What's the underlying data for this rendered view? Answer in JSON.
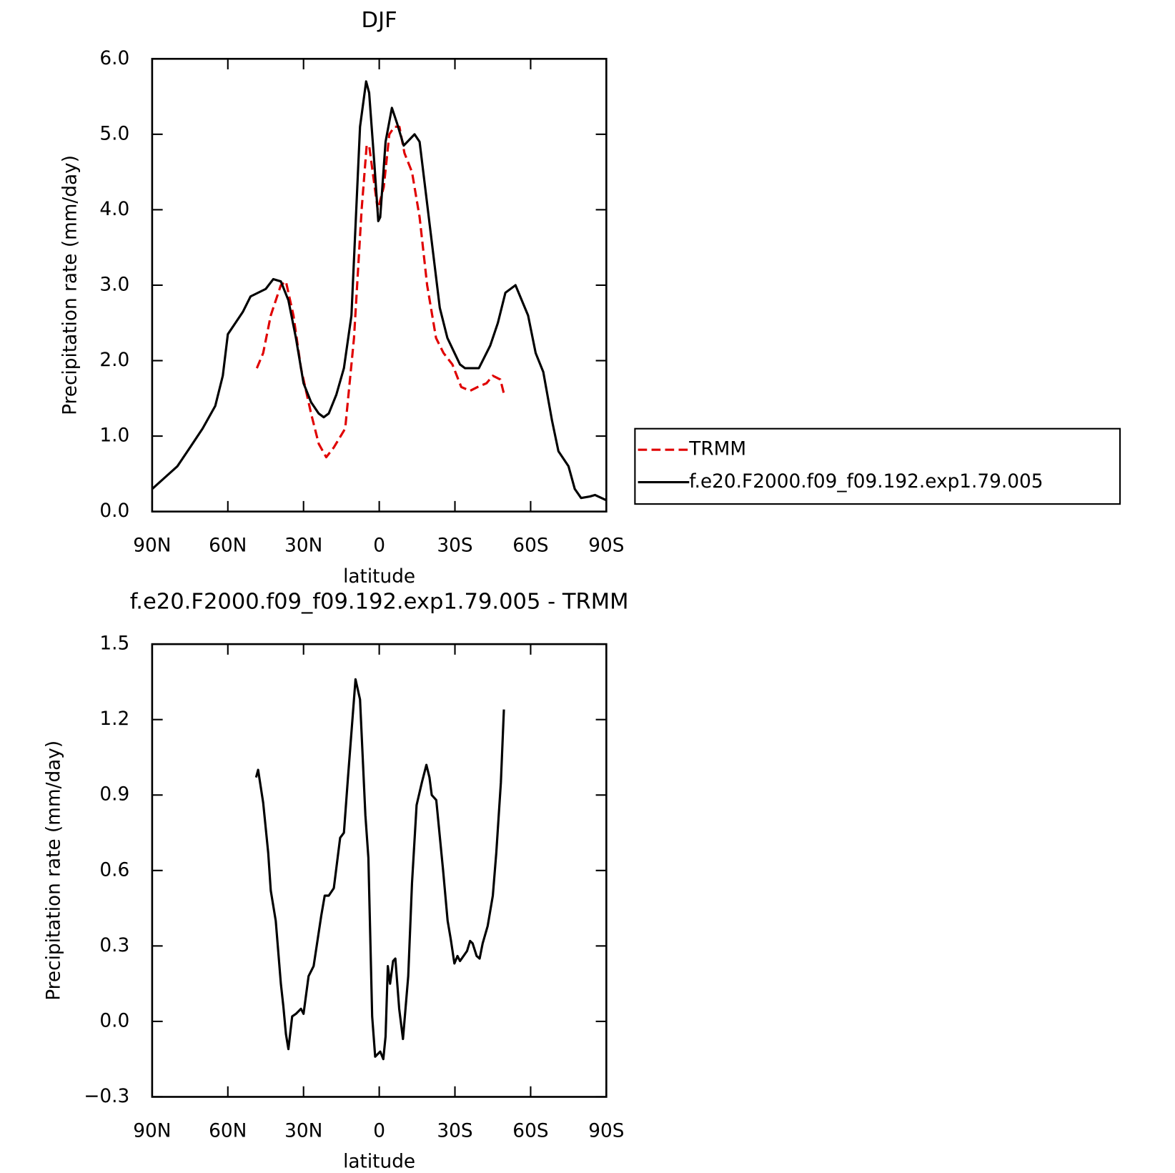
{
  "chart_data": [
    {
      "type": "line",
      "title": "DJF",
      "xlabel": "latitude",
      "ylabel": "Precipitation rate (mm/day)",
      "xlim": [
        90,
        -90
      ],
      "xticks": [
        {
          "value": 90,
          "label": "90N"
        },
        {
          "value": 60,
          "label": "60N"
        },
        {
          "value": 30,
          "label": "30N"
        },
        0,
        {
          "value": -30,
          "label": "30S"
        },
        {
          "value": -60,
          "label": "60S"
        },
        {
          "value": -90,
          "label": "90S"
        }
      ],
      "ylim": [
        0,
        6
      ],
      "yticks": [
        {
          "value": 0,
          "label": "0.0"
        },
        {
          "value": 1,
          "label": "1.0"
        },
        {
          "value": 2,
          "label": "2.0"
        },
        {
          "value": 3,
          "label": "3.0"
        },
        {
          "value": 4,
          "label": "4.0"
        },
        {
          "value": 5,
          "label": "5.0"
        },
        {
          "value": 6,
          "label": "6.0"
        }
      ],
      "legend": "right",
      "series": [
        {
          "name": "TRMM",
          "color": "#e00000",
          "dash": "dashed",
          "x": [
            48.5,
            46,
            43,
            39,
            37,
            34,
            31,
            27,
            24,
            21,
            18,
            13.5,
            10,
            7,
            5,
            4,
            0.6,
            -1.8,
            -4,
            -6,
            -8,
            -10,
            -13,
            -16,
            -19,
            -22.5,
            -25.5,
            -29,
            -32.5,
            -36,
            -39,
            -42.5,
            -45,
            -48,
            -49.5
          ],
          "values": [
            1.9,
            2.1,
            2.6,
            3.0,
            3.05,
            2.6,
            1.9,
            1.3,
            0.9,
            0.72,
            0.85,
            1.1,
            2.3,
            4.0,
            4.85,
            4.85,
            4.0,
            4.3,
            5.0,
            5.1,
            5.1,
            4.75,
            4.5,
            3.9,
            3.0,
            2.3,
            2.1,
            1.95,
            1.65,
            1.6,
            1.65,
            1.7,
            1.8,
            1.75,
            1.55
          ]
        },
        {
          "name": "f.e20.F2000.f09_f09.192.exp1.79.005",
          "color": "#000000",
          "dash": "solid",
          "x": [
            90,
            85,
            80,
            75,
            70,
            65,
            62,
            60,
            57,
            54,
            51,
            48,
            45,
            42,
            39,
            36,
            33,
            30,
            27,
            24,
            22,
            20,
            17,
            14,
            11,
            7.6,
            5.2,
            4,
            1.9,
            0.4,
            -0.4,
            -2.5,
            -5,
            -7,
            -9.7,
            -14,
            -16,
            -20,
            -24,
            -27,
            -32,
            -34,
            -36,
            -39.5,
            -44,
            -47,
            -50,
            -54,
            -59,
            -62,
            -65,
            -68.5,
            -71,
            -75,
            -77.5,
            -80,
            -83.5,
            -85.5,
            -90
          ],
          "values": [
            0.3,
            0.45,
            0.6,
            0.85,
            1.1,
            1.4,
            1.8,
            2.35,
            2.5,
            2.65,
            2.85,
            2.9,
            2.95,
            3.08,
            3.05,
            2.8,
            2.3,
            1.7,
            1.45,
            1.3,
            1.25,
            1.3,
            1.55,
            1.9,
            2.6,
            5.1,
            5.7,
            5.55,
            4.6,
            3.85,
            3.9,
            4.9,
            5.35,
            5.15,
            4.85,
            5.0,
            4.9,
            3.8,
            2.7,
            2.3,
            1.95,
            1.9,
            1.9,
            1.9,
            2.2,
            2.5,
            2.9,
            3.0,
            2.6,
            2.1,
            1.85,
            1.2,
            0.8,
            0.6,
            0.3,
            0.18,
            0.2,
            0.22,
            0.15
          ]
        }
      ]
    },
    {
      "type": "line",
      "title": "f.e20.F2000.f09_f09.192.exp1.79.005 - TRMM",
      "xlabel": "latitude",
      "ylabel": "Precipitation rate (mm/day)",
      "xlim": [
        90,
        -90
      ],
      "xticks": [
        {
          "value": 90,
          "label": "90N"
        },
        {
          "value": 60,
          "label": "60N"
        },
        {
          "value": 30,
          "label": "30N"
        },
        0,
        {
          "value": -30,
          "label": "30S"
        },
        {
          "value": -60,
          "label": "60S"
        },
        {
          "value": -90,
          "label": "90S"
        }
      ],
      "ylim": [
        -0.3,
        1.5
      ],
      "yticks": [
        {
          "value": -0.3,
          "label": "−0.3"
        },
        {
          "value": 0,
          "label": "0.0"
        },
        0.3,
        0.6,
        0.9,
        1.2,
        1.5
      ],
      "series": [
        {
          "color": "#000000",
          "dash": "solid",
          "x": [
            48.8,
            48,
            46,
            44,
            43,
            41,
            39,
            38,
            37,
            36,
            34.5,
            33,
            31,
            30,
            28,
            26,
            23,
            21.6,
            20,
            18,
            15.5,
            14,
            12.4,
            9.4,
            7.6,
            5.5,
            4.3,
            2.8,
            1.6,
            -0.4,
            -1.6,
            -2.5,
            -3.4,
            -4.3,
            -5.5,
            -6.4,
            -7.9,
            -9.4,
            -11.5,
            -13,
            -14.8,
            -16.9,
            -18.7,
            -19.9,
            -20.8,
            -22.6,
            -25.3,
            -27.1,
            -28.3,
            -29.8,
            -31,
            -32,
            -34.8,
            -36,
            -37,
            -38.6,
            -39.8,
            -41,
            -43,
            -45,
            -46.4,
            -48.2,
            -49.4
          ],
          "values": [
            0.97,
            1.0,
            0.87,
            0.67,
            0.52,
            0.4,
            0.15,
            0.06,
            -0.05,
            -0.11,
            0.02,
            0.03,
            0.05,
            0.03,
            0.18,
            0.22,
            0.42,
            0.5,
            0.5,
            0.53,
            0.73,
            0.75,
            0.97,
            1.36,
            1.28,
            0.82,
            0.65,
            0.02,
            -0.14,
            -0.12,
            -0.15,
            -0.06,
            0.22,
            0.15,
            0.24,
            0.25,
            0.05,
            -0.07,
            0.18,
            0.55,
            0.86,
            0.95,
            1.02,
            0.97,
            0.9,
            0.88,
            0.6,
            0.4,
            0.33,
            0.23,
            0.26,
            0.24,
            0.28,
            0.32,
            0.31,
            0.26,
            0.25,
            0.31,
            0.38,
            0.5,
            0.67,
            0.95,
            1.24
          ]
        }
      ]
    }
  ]
}
